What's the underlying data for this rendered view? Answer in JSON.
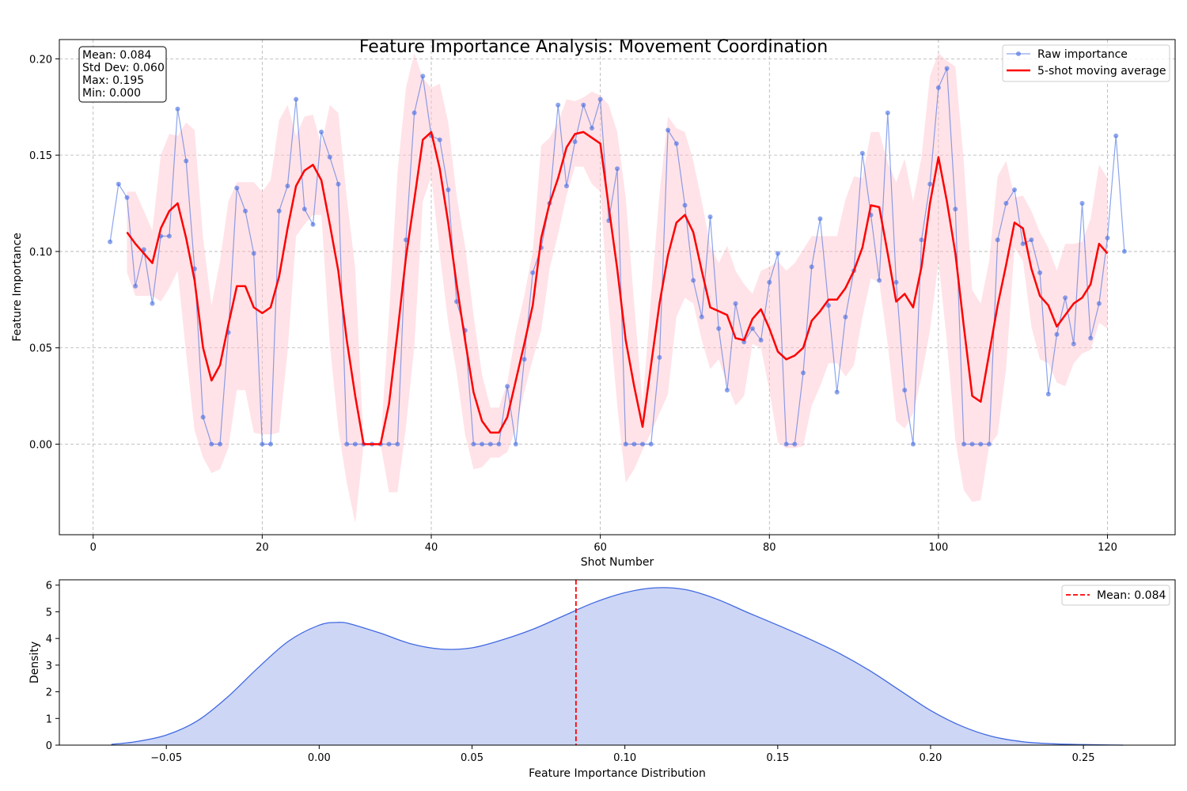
{
  "colors": {
    "raw": "#4169e1",
    "moving_average": "#ff0000",
    "band": "#ffc0cb",
    "kde": "#4169e1",
    "kde_fill": "#cdd6f5",
    "mean_line": "#ff0000",
    "grid": "#b0b0b0"
  },
  "chart_data": [
    {
      "type": "line",
      "title": "Feature Importance Analysis: Movement Coordination",
      "xlabel": "Shot Number",
      "ylabel": "Feature Importance",
      "xlim": [
        -4,
        128
      ],
      "ylim": [
        -0.047,
        0.21
      ],
      "xticks": [
        0,
        20,
        40,
        60,
        80,
        100,
        120
      ],
      "xtick_labels": [
        "0",
        "20",
        "40",
        "60",
        "80",
        "100",
        "120"
      ],
      "yticks": [
        0.0,
        0.05,
        0.1,
        0.15,
        0.2
      ],
      "ytick_labels": [
        "0.00",
        "0.05",
        "0.10",
        "0.15",
        "0.20"
      ],
      "grid": true,
      "grid_style": "dashed",
      "legend_position": "top-right",
      "stats_box": [
        "Mean: 0.084",
        "Std Dev: 0.060",
        "Max: 0.195",
        "Min: 0.000"
      ],
      "x": [
        2,
        3,
        4,
        5,
        6,
        7,
        8,
        9,
        10,
        11,
        12,
        13,
        14,
        15,
        16,
        17,
        18,
        19,
        20,
        21,
        22,
        23,
        24,
        25,
        26,
        27,
        28,
        29,
        30,
        31,
        32,
        33,
        34,
        35,
        36,
        37,
        38,
        39,
        40,
        41,
        42,
        43,
        44,
        45,
        46,
        47,
        48,
        49,
        50,
        51,
        52,
        53,
        54,
        55,
        56,
        57,
        58,
        59,
        60,
        61,
        62,
        63,
        64,
        65,
        66,
        67,
        68,
        69,
        70,
        71,
        72,
        73,
        74,
        75,
        76,
        77,
        78,
        79,
        80,
        81,
        82,
        83,
        84,
        85,
        86,
        87,
        88,
        89,
        90,
        91,
        92,
        93,
        94,
        95,
        96,
        97,
        98,
        99,
        100,
        101,
        102,
        103,
        104,
        105,
        106,
        107,
        108,
        109,
        110,
        111,
        112,
        113,
        114,
        115,
        116,
        117,
        118,
        119,
        120,
        121,
        122
      ],
      "series": [
        {
          "name": "Raw importance",
          "style": "line-markers",
          "values": [
            0.105,
            0.135,
            0.128,
            0.082,
            0.101,
            0.073,
            0.108,
            0.108,
            0.174,
            0.147,
            0.091,
            0.014,
            0.0,
            0.0,
            0.058,
            0.133,
            0.121,
            0.099,
            0.0,
            0.0,
            0.121,
            0.134,
            0.179,
            0.122,
            0.114,
            0.162,
            0.149,
            0.135,
            0.0,
            0.0,
            0.0,
            0.0,
            0.0,
            0.0,
            0.0,
            0.106,
            0.172,
            0.191,
            0.16,
            0.158,
            0.132,
            0.074,
            0.059,
            0.0,
            0.0,
            0.0,
            0.0,
            0.03,
            0.0,
            0.044,
            0.089,
            0.102,
            0.125,
            0.176,
            0.134,
            0.157,
            0.176,
            0.164,
            0.179,
            0.116,
            0.143,
            0.0,
            0.0,
            0.0,
            0.0,
            0.045,
            0.163,
            0.156,
            0.124,
            0.085,
            0.066,
            0.118,
            0.06,
            0.028,
            0.073,
            0.053,
            0.06,
            0.054,
            0.084,
            0.099,
            0.0,
            0.0,
            0.037,
            0.092,
            0.117,
            0.072,
            0.027,
            0.066,
            0.09,
            0.151,
            0.119,
            0.085,
            0.172,
            0.084,
            0.028,
            0.0,
            0.106,
            0.135,
            0.185,
            0.195,
            0.122,
            0.0,
            0.0,
            0.0,
            0.0,
            0.106,
            0.125,
            0.132,
            0.104,
            0.106,
            0.089,
            0.026,
            0.057,
            0.076,
            0.052,
            0.125,
            0.055,
            0.073,
            0.107,
            0.16,
            0.1
          ]
        },
        {
          "name": "5-shot moving average",
          "style": "line",
          "x": [
            4,
            5,
            6,
            7,
            8,
            9,
            10,
            11,
            12,
            13,
            14,
            15,
            16,
            17,
            18,
            19,
            20,
            21,
            22,
            23,
            24,
            25,
            26,
            27,
            28,
            29,
            30,
            31,
            32,
            33,
            34,
            35,
            36,
            37,
            38,
            39,
            40,
            41,
            42,
            43,
            44,
            45,
            46,
            47,
            48,
            49,
            50,
            51,
            52,
            53,
            54,
            55,
            56,
            57,
            58,
            59,
            60,
            61,
            62,
            63,
            64,
            65,
            66,
            67,
            68,
            69,
            70,
            71,
            72,
            73,
            74,
            75,
            76,
            77,
            78,
            79,
            80,
            81,
            82,
            83,
            84,
            85,
            86,
            87,
            88,
            89,
            90,
            91,
            92,
            93,
            94,
            95,
            96,
            97,
            98,
            99,
            100,
            101,
            102,
            103,
            104,
            105,
            106,
            107,
            108,
            109,
            110,
            111,
            112,
            113,
            114,
            115,
            116,
            117,
            118,
            119,
            120
          ],
          "values": [
            0.11,
            0.104,
            0.099,
            0.094,
            0.112,
            0.121,
            0.125,
            0.107,
            0.085,
            0.05,
            0.033,
            0.041,
            0.062,
            0.082,
            0.082,
            0.071,
            0.068,
            0.071,
            0.087,
            0.112,
            0.134,
            0.142,
            0.145,
            0.137,
            0.114,
            0.09,
            0.054,
            0.025,
            0.0,
            0.0,
            0.0,
            0.021,
            0.058,
            0.097,
            0.127,
            0.158,
            0.162,
            0.143,
            0.115,
            0.083,
            0.054,
            0.027,
            0.012,
            0.006,
            0.006,
            0.014,
            0.033,
            0.052,
            0.072,
            0.107,
            0.125,
            0.138,
            0.154,
            0.161,
            0.162,
            0.159,
            0.156,
            0.123,
            0.091,
            0.054,
            0.03,
            0.009,
            0.041,
            0.073,
            0.098,
            0.115,
            0.119,
            0.11,
            0.09,
            0.071,
            0.069,
            0.067,
            0.055,
            0.054,
            0.065,
            0.07,
            0.06,
            0.048,
            0.044,
            0.046,
            0.05,
            0.064,
            0.069,
            0.075,
            0.075,
            0.081,
            0.09,
            0.102,
            0.124,
            0.123,
            0.099,
            0.074,
            0.078,
            0.071,
            0.092,
            0.125,
            0.149,
            0.126,
            0.099,
            0.061,
            0.025,
            0.022,
            0.047,
            0.072,
            0.093,
            0.115,
            0.112,
            0.091,
            0.077,
            0.072,
            0.061,
            0.067,
            0.073,
            0.076,
            0.083,
            0.104,
            0.099
          ]
        }
      ],
      "band": {
        "description": "moving average ± moving std",
        "x": [
          4,
          5,
          6,
          7,
          8,
          9,
          10,
          11,
          12,
          13,
          14,
          15,
          16,
          17,
          18,
          19,
          20,
          21,
          22,
          23,
          24,
          25,
          26,
          27,
          28,
          29,
          30,
          31,
          32,
          33,
          34,
          35,
          36,
          37,
          38,
          39,
          40,
          41,
          42,
          43,
          44,
          45,
          46,
          47,
          48,
          49,
          50,
          51,
          52,
          53,
          54,
          55,
          56,
          57,
          58,
          59,
          60,
          61,
          62,
          63,
          64,
          65,
          66,
          67,
          68,
          69,
          70,
          71,
          72,
          73,
          74,
          75,
          76,
          77,
          78,
          79,
          80,
          81,
          82,
          83,
          84,
          85,
          86,
          87,
          88,
          89,
          90,
          91,
          92,
          93,
          94,
          95,
          96,
          97,
          98,
          99,
          100,
          101,
          102,
          103,
          104,
          105,
          106,
          107,
          108,
          109,
          110,
          111,
          112,
          113,
          114,
          115,
          116,
          117,
          118,
          119,
          120
        ],
        "upper": [
          0.131,
          0.131,
          0.121,
          0.111,
          0.15,
          0.161,
          0.16,
          0.167,
          0.163,
          0.107,
          0.072,
          0.095,
          0.126,
          0.136,
          0.136,
          0.136,
          0.131,
          0.137,
          0.168,
          0.176,
          0.16,
          0.17,
          0.171,
          0.155,
          0.176,
          0.172,
          0.128,
          0.091,
          0.0,
          0.0,
          0.0,
          0.067,
          0.141,
          0.185,
          0.203,
          0.19,
          0.185,
          0.187,
          0.167,
          0.129,
          0.103,
          0.067,
          0.036,
          0.019,
          0.019,
          0.032,
          0.058,
          0.077,
          0.1,
          0.155,
          0.159,
          0.167,
          0.179,
          0.178,
          0.18,
          0.183,
          0.181,
          0.176,
          0.162,
          0.128,
          0.073,
          0.021,
          0.076,
          0.13,
          0.17,
          0.164,
          0.162,
          0.147,
          0.126,
          0.103,
          0.094,
          0.103,
          0.09,
          0.083,
          0.078,
          0.09,
          0.092,
          0.095,
          0.09,
          0.094,
          0.101,
          0.108,
          0.108,
          0.108,
          0.108,
          0.127,
          0.139,
          0.138,
          0.162,
          0.162,
          0.146,
          0.136,
          0.148,
          0.126,
          0.149,
          0.191,
          0.203,
          0.199,
          0.196,
          0.146,
          0.08,
          0.073,
          0.095,
          0.139,
          0.147,
          0.128,
          0.129,
          0.121,
          0.11,
          0.102,
          0.09,
          0.104,
          0.104,
          0.105,
          0.117,
          0.145,
          0.138
        ],
        "lower": [
          0.089,
          0.077,
          0.077,
          0.077,
          0.074,
          0.081,
          0.09,
          0.047,
          0.007,
          -0.007,
          -0.015,
          -0.013,
          -0.002,
          0.028,
          0.028,
          0.006,
          0.005,
          0.005,
          0.006,
          0.048,
          0.108,
          0.114,
          0.119,
          0.119,
          0.052,
          0.008,
          -0.02,
          -0.041,
          0.0,
          0.0,
          0.0,
          -0.025,
          -0.025,
          0.009,
          0.051,
          0.126,
          0.139,
          0.099,
          0.063,
          0.037,
          0.005,
          -0.013,
          -0.012,
          -0.007,
          -0.007,
          -0.004,
          0.008,
          0.027,
          0.044,
          0.059,
          0.091,
          0.109,
          0.129,
          0.144,
          0.144,
          0.135,
          0.131,
          0.07,
          0.02,
          -0.02,
          -0.013,
          -0.003,
          0.006,
          0.016,
          0.026,
          0.066,
          0.076,
          0.073,
          0.054,
          0.039,
          0.044,
          0.031,
          0.02,
          0.025,
          0.052,
          0.05,
          0.028,
          0.001,
          -0.002,
          -0.002,
          -0.001,
          0.02,
          0.03,
          0.042,
          0.042,
          0.035,
          0.041,
          0.066,
          0.086,
          0.084,
          0.052,
          0.012,
          0.008,
          0.016,
          0.035,
          0.059,
          0.095,
          0.053,
          0.002,
          -0.024,
          -0.03,
          -0.029,
          -0.001,
          0.005,
          0.039,
          0.102,
          0.095,
          0.061,
          0.044,
          0.042,
          0.032,
          0.03,
          0.042,
          0.047,
          0.049,
          0.063,
          0.06
        ]
      },
      "ma_start_x": 4
    },
    {
      "type": "area",
      "title": "",
      "xlabel": "Feature Importance Distribution",
      "ylabel": "Density",
      "xlim": [
        -0.085,
        0.28
      ],
      "ylim": [
        0,
        6.2
      ],
      "xticks": [
        -0.05,
        0.0,
        0.05,
        0.1,
        0.15,
        0.2,
        0.25
      ],
      "xtick_labels": [
        "−0.05",
        "0.00",
        "0.05",
        "0.10",
        "0.15",
        "0.20",
        "0.25"
      ],
      "yticks": [
        0,
        1,
        2,
        3,
        4,
        5,
        6
      ],
      "ytick_labels": [
        "0",
        "1",
        "2",
        "3",
        "4",
        "5",
        "6"
      ],
      "grid": false,
      "legend_position": "top-right",
      "mean": 0.084,
      "mean_label": "Mean: 0.084",
      "x": [
        -0.068,
        -0.06,
        -0.05,
        -0.04,
        -0.03,
        -0.02,
        -0.01,
        0.0,
        0.006,
        0.01,
        0.02,
        0.03,
        0.04,
        0.05,
        0.06,
        0.07,
        0.08,
        0.09,
        0.1,
        0.11,
        0.12,
        0.13,
        0.14,
        0.15,
        0.16,
        0.17,
        0.18,
        0.19,
        0.2,
        0.21,
        0.22,
        0.23,
        0.24,
        0.25,
        0.263
      ],
      "values": [
        0.03,
        0.13,
        0.38,
        0.9,
        1.8,
        2.9,
        3.9,
        4.5,
        4.6,
        4.55,
        4.2,
        3.8,
        3.6,
        3.65,
        3.95,
        4.35,
        4.85,
        5.35,
        5.72,
        5.9,
        5.83,
        5.48,
        4.98,
        4.5,
        4.0,
        3.45,
        2.8,
        2.05,
        1.3,
        0.72,
        0.33,
        0.13,
        0.05,
        0.02,
        0.0
      ]
    }
  ]
}
